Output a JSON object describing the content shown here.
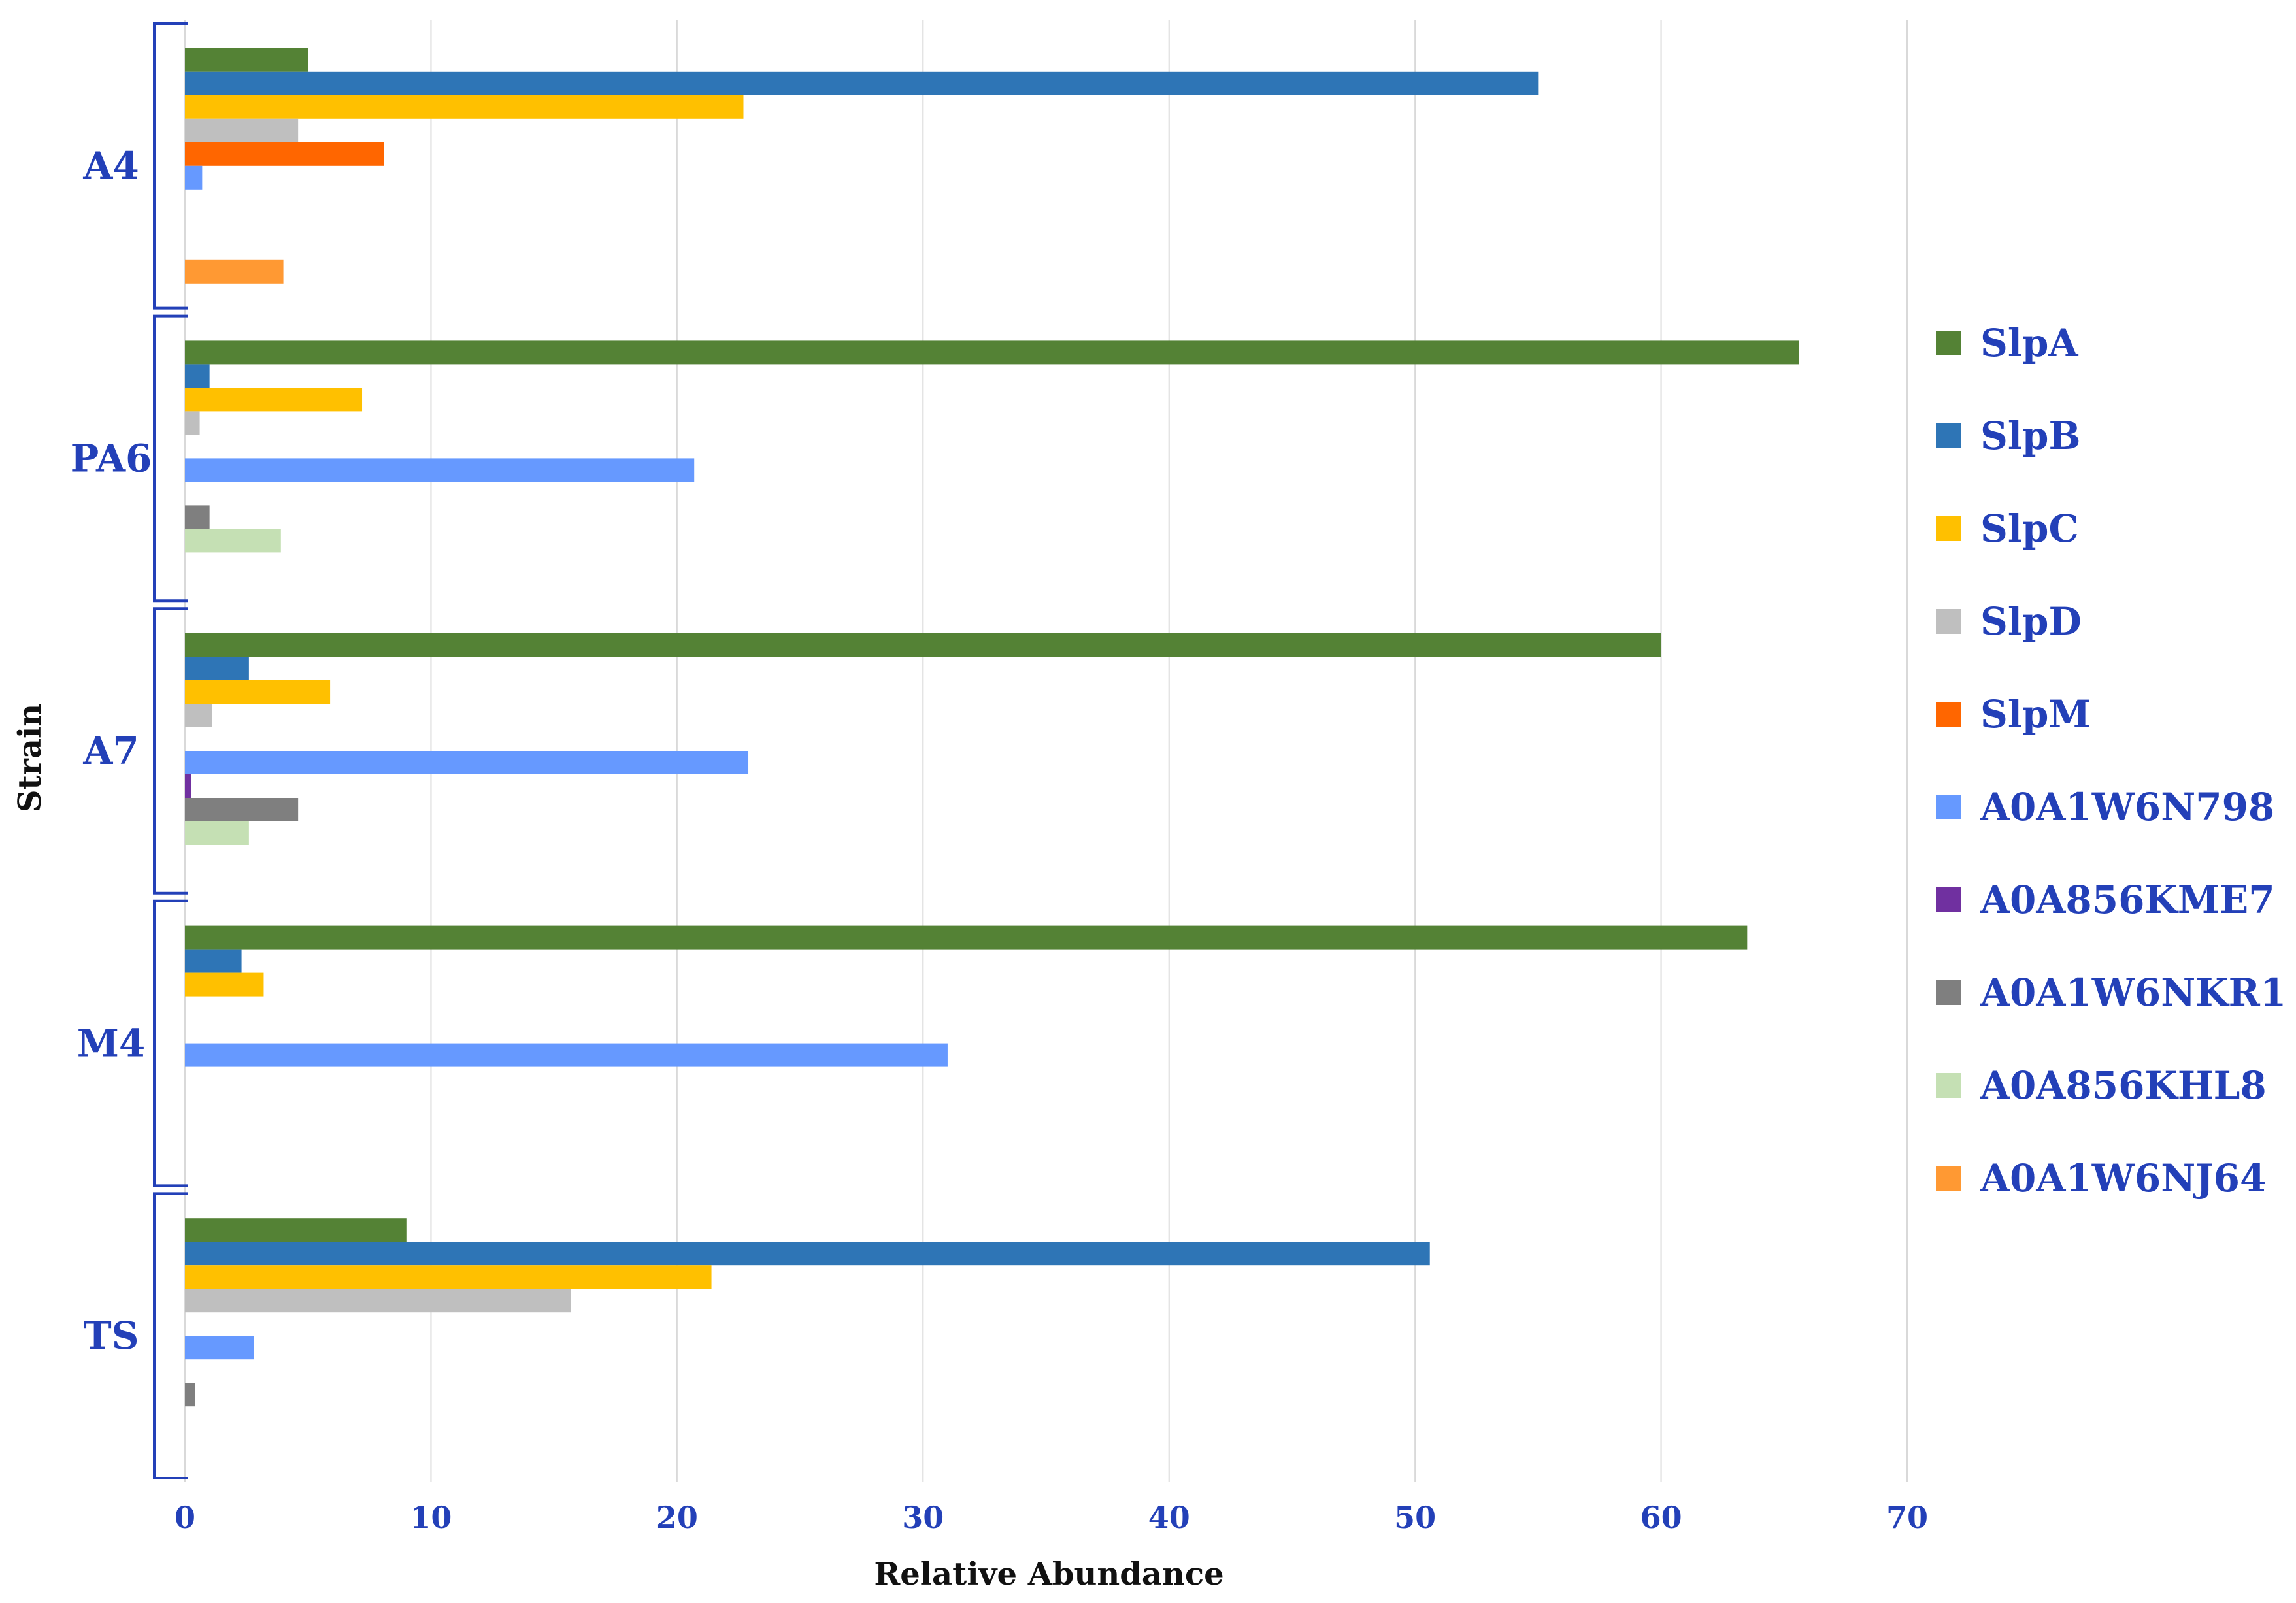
{
  "chart_data": {
    "type": "bar",
    "orientation": "horizontal",
    "title": "",
    "xlabel": "Relative Abundance",
    "ylabel": "Strain",
    "xlim": [
      0,
      70
    ],
    "x_ticks": [
      0,
      10,
      20,
      30,
      40,
      50,
      60,
      70
    ],
    "grid": "vertical",
    "legend_position": "right",
    "categories": [
      "A4",
      "PA6",
      "A7",
      "M4",
      "TS"
    ],
    "series": [
      {
        "name": "SlpA",
        "color": "#548235",
        "values": [
          5.0,
          65.6,
          60.0,
          63.5,
          9.0
        ]
      },
      {
        "name": "SlpB",
        "color": "#2e75b6",
        "values": [
          55.0,
          1.0,
          2.6,
          2.3,
          50.6
        ]
      },
      {
        "name": "SlpC",
        "color": "#ffc000",
        "values": [
          22.7,
          7.2,
          5.9,
          3.2,
          21.4
        ]
      },
      {
        "name": "SlpD",
        "color": "#bfbfbf",
        "values": [
          4.6,
          0.6,
          1.1,
          0,
          15.7
        ]
      },
      {
        "name": "SlpM",
        "color": "#ff6600",
        "values": [
          8.1,
          0,
          0,
          0,
          0
        ]
      },
      {
        "name": "A0A1W6N798",
        "color": "#6699ff",
        "values": [
          0.7,
          20.7,
          22.9,
          31.0,
          2.8
        ]
      },
      {
        "name": "A0A856KME7",
        "color": "#7030a0",
        "values": [
          0,
          0,
          0.25,
          0,
          0
        ]
      },
      {
        "name": "A0A1W6NKR1",
        "color": "#7f7f7f",
        "values": [
          0,
          1.0,
          4.6,
          0,
          0.4
        ]
      },
      {
        "name": "A0A856KHL8",
        "color": "#c5e0b4",
        "values": [
          0,
          3.9,
          2.6,
          0,
          0
        ]
      },
      {
        "name": "A0A1W6NJ64",
        "color": "#ff9933",
        "values": [
          4.0,
          0,
          0,
          0,
          0
        ]
      }
    ]
  }
}
